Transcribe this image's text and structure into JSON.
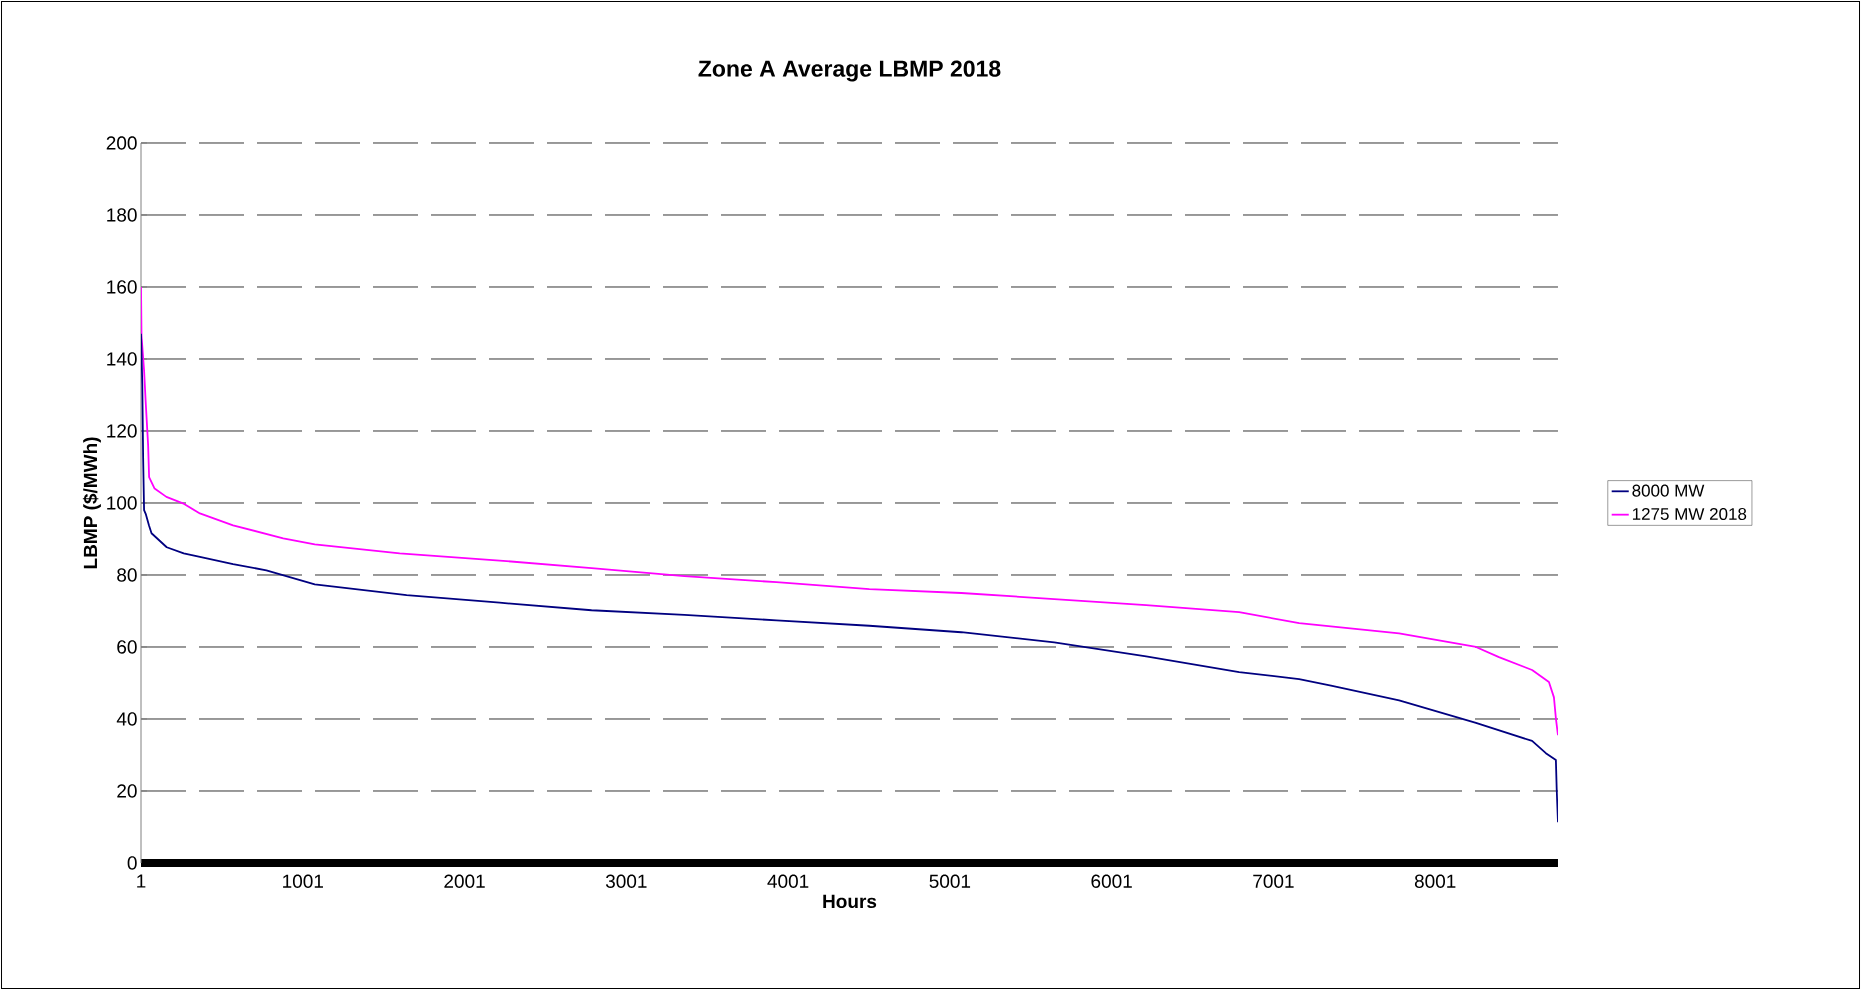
{
  "chart_data": {
    "type": "line",
    "title": "Zone A Average LBMP 2018",
    "xlabel": "Hours",
    "ylabel": "LBMP  ($/MWh)",
    "xlim": [
      1,
      8760
    ],
    "xticks": [
      1,
      1001,
      2001,
      3001,
      4001,
      5001,
      6001,
      7001,
      8001
    ],
    "ylim": [
      0,
      200
    ],
    "yticks": [
      0,
      20,
      40,
      60,
      80,
      100,
      120,
      140,
      160,
      180,
      200
    ],
    "grid": "y",
    "legend": "right",
    "marker": "none",
    "line_style": "solid",
    "series": [
      {
        "name": "8000 MW",
        "color": "#000080",
        "x": [
          1,
          9,
          14,
          20,
          30,
          50,
          66,
          160,
          265,
          365,
          570,
          776,
          1075,
          1643,
          2218,
          2786,
          3360,
          3929,
          4503,
          5072,
          5646,
          6214,
          6789,
          7160,
          7357,
          7778,
          8253,
          8600,
          8685,
          8747,
          8752,
          8760
        ],
        "values": [
          147,
          133,
          113,
          98,
          97,
          93.8,
          91.6,
          87.7,
          86,
          85,
          83,
          81.3,
          77.4,
          74.4,
          72.3,
          70.2,
          68.9,
          67.4,
          65.9,
          64.1,
          61.3,
          57.4,
          53,
          51.1,
          49.3,
          45.2,
          38.9,
          33.9,
          30.5,
          28.6,
          20.6,
          11.3
        ]
      },
      {
        "name": "1275 MW 2018",
        "color": "#ff00ff",
        "x": [
          1,
          4,
          20,
          30,
          45,
          51,
          85,
          158,
          260,
          365,
          570,
          880,
          1075,
          1600,
          2218,
          2786,
          3360,
          3929,
          4503,
          5072,
          5646,
          6214,
          6789,
          7160,
          7778,
          8253,
          8395,
          8600,
          8704,
          8735,
          8747,
          8760
        ],
        "values": [
          160,
          146.5,
          136.8,
          128,
          116,
          107.2,
          104,
          101.7,
          99.9,
          97.1,
          93.8,
          90.2,
          88.5,
          86,
          84,
          81.9,
          79.7,
          78,
          76.1,
          75,
          73.3,
          71.6,
          69.7,
          66.6,
          63.8,
          60,
          57.2,
          53.6,
          50.3,
          46,
          40.2,
          35.5
        ]
      }
    ]
  }
}
